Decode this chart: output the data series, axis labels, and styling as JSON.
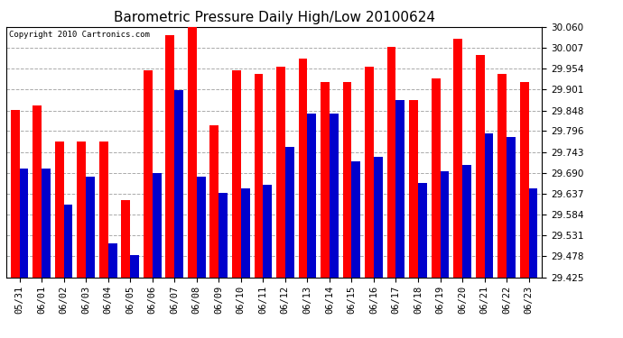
{
  "title": "Barometric Pressure Daily High/Low 20100624",
  "copyright": "Copyright 2010 Cartronics.com",
  "categories": [
    "05/31",
    "06/01",
    "06/02",
    "06/03",
    "06/04",
    "06/05",
    "06/06",
    "06/07",
    "06/08",
    "06/09",
    "06/10",
    "06/11",
    "06/12",
    "06/13",
    "06/14",
    "06/15",
    "06/16",
    "06/17",
    "06/18",
    "06/19",
    "06/20",
    "06/21",
    "06/22",
    "06/23"
  ],
  "highs": [
    29.85,
    29.86,
    29.77,
    29.77,
    29.77,
    29.62,
    29.95,
    30.04,
    30.07,
    29.81,
    29.95,
    29.94,
    29.96,
    29.98,
    29.92,
    29.92,
    29.96,
    30.01,
    29.875,
    29.93,
    30.03,
    29.99,
    29.94,
    29.92
  ],
  "lows": [
    29.7,
    29.7,
    29.61,
    29.68,
    29.51,
    29.48,
    29.69,
    29.9,
    29.68,
    29.64,
    29.65,
    29.66,
    29.755,
    29.84,
    29.84,
    29.72,
    29.73,
    29.875,
    29.665,
    29.695,
    29.71,
    29.79,
    29.78,
    29.65
  ],
  "high_color": "#ff0000",
  "low_color": "#0000cc",
  "ymin": 29.425,
  "ymax": 30.06,
  "yticks": [
    29.425,
    29.478,
    29.531,
    29.584,
    29.637,
    29.69,
    29.743,
    29.796,
    29.848,
    29.901,
    29.954,
    30.007,
    30.06
  ],
  "background_color": "#ffffff",
  "grid_color": "#aaaaaa",
  "title_fontsize": 11,
  "tick_fontsize": 7.5,
  "bar_width": 0.4
}
